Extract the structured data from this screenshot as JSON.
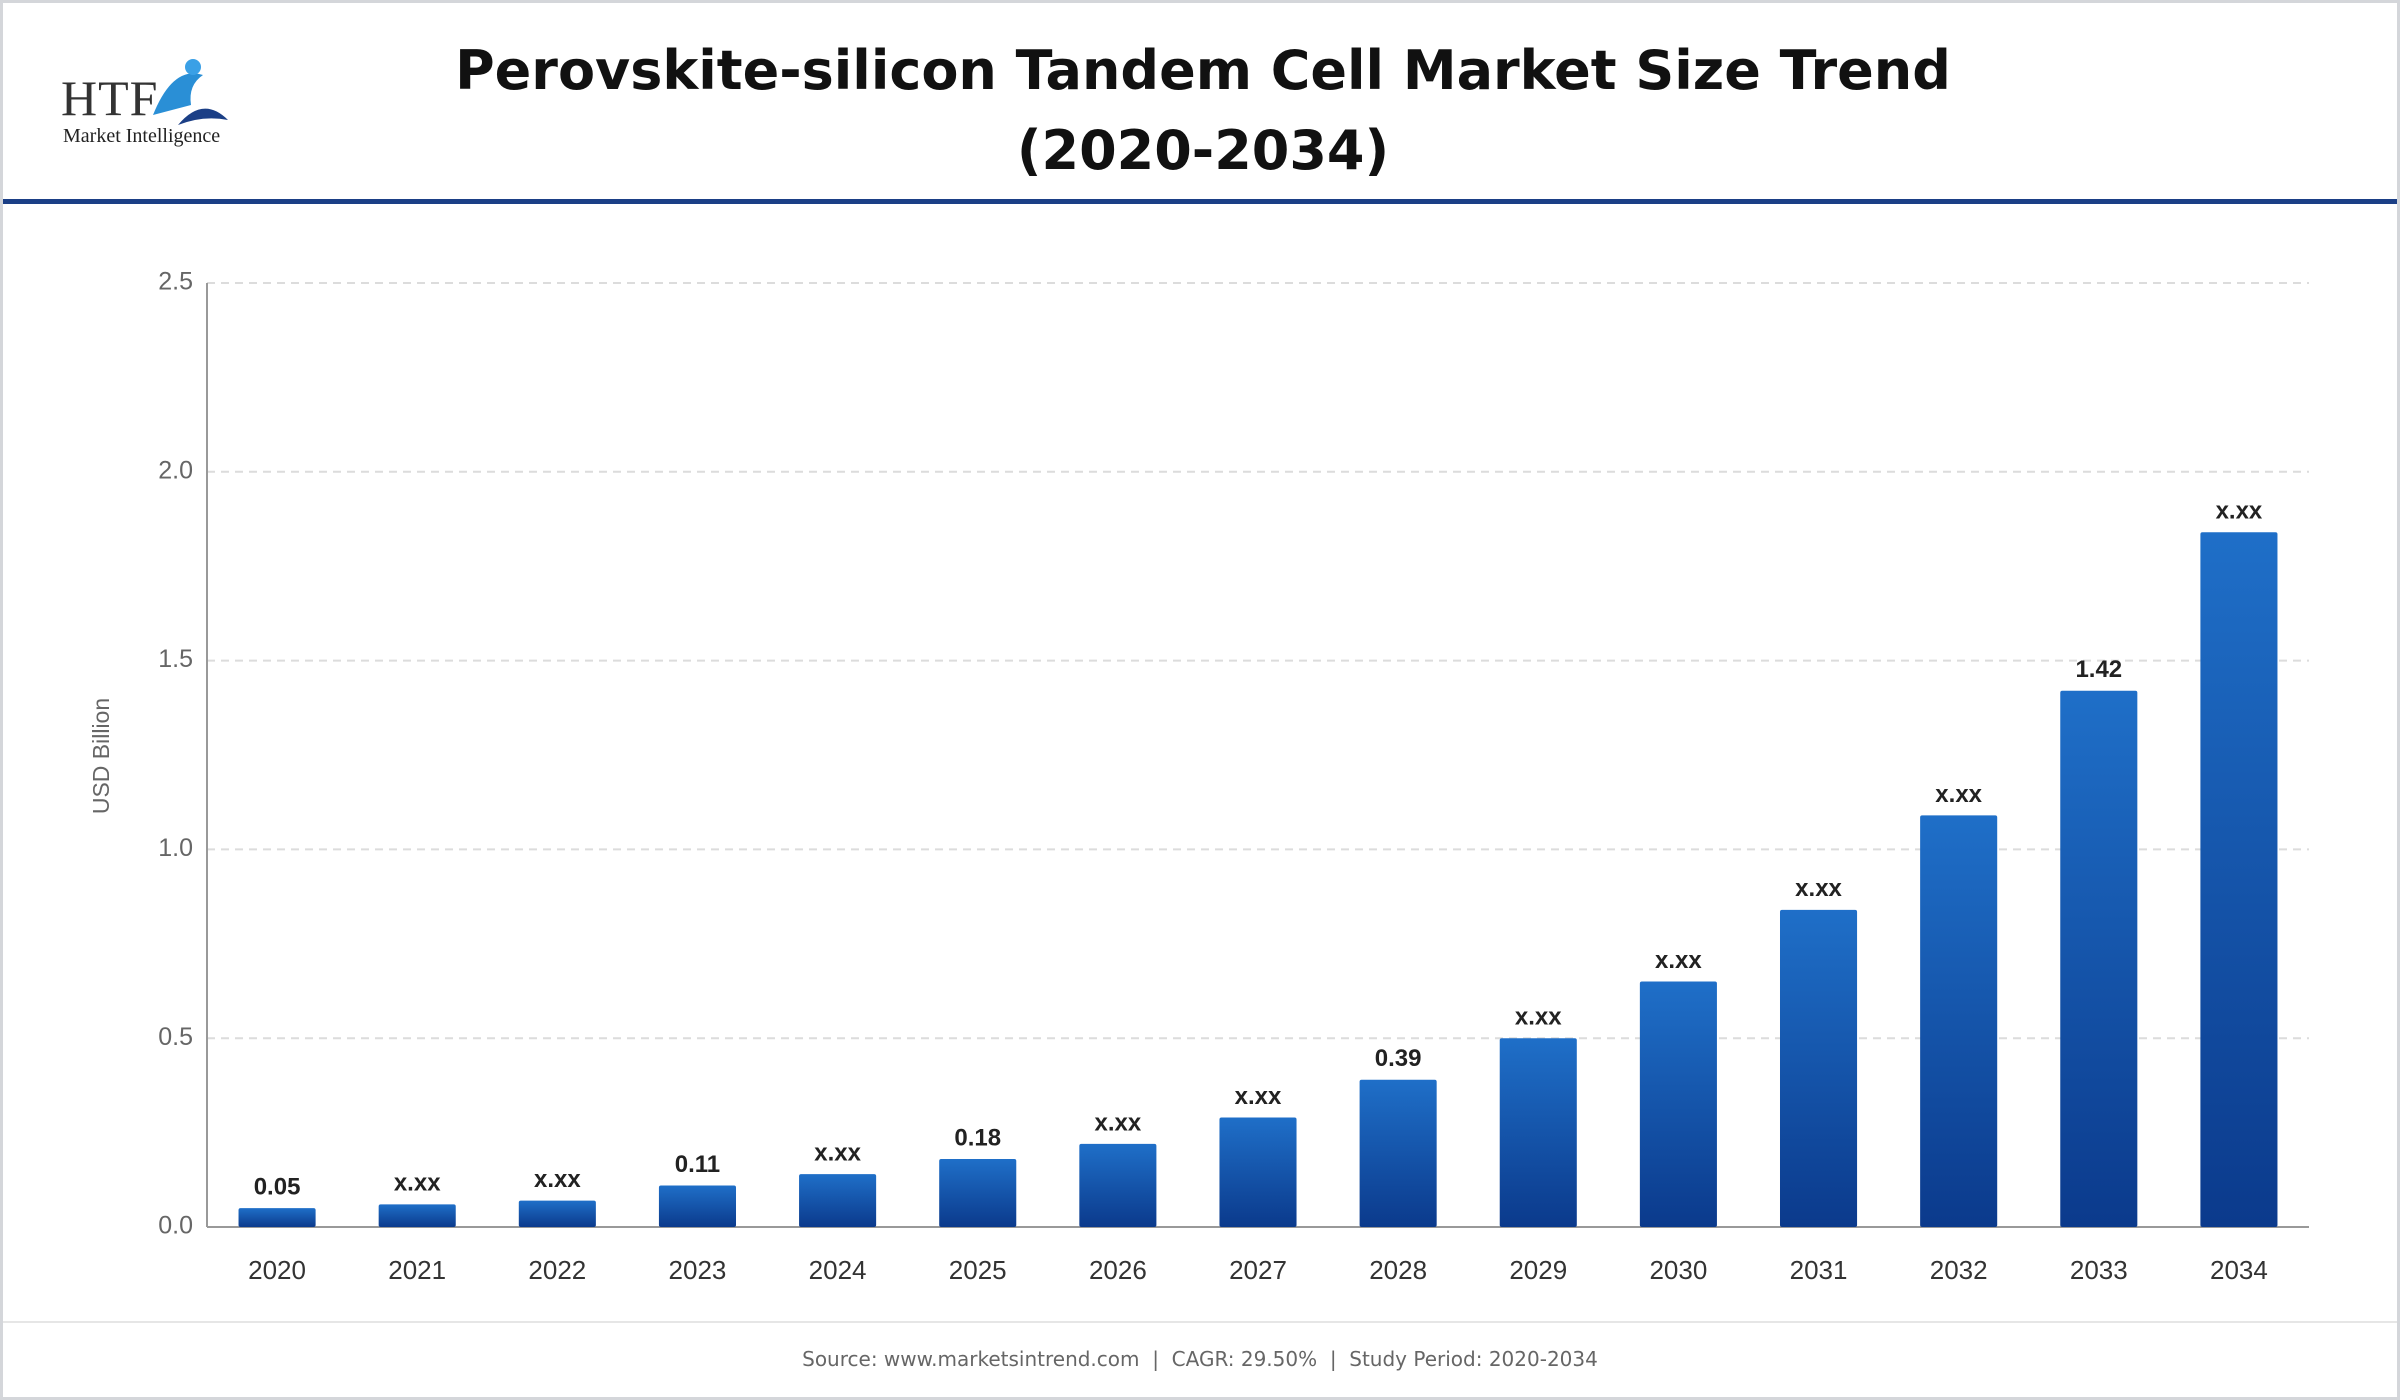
{
  "logo": {
    "name": "HTF",
    "tagline": "Market Intelligence"
  },
  "chart_data": {
    "type": "bar",
    "title": "Perovskite-silicon Tandem Cell Market Size Trend (2020-2034)",
    "y_label": "USD Billion",
    "categories": [
      "2020",
      "2021",
      "2022",
      "2023",
      "2024",
      "2025",
      "2026",
      "2027",
      "2028",
      "2029",
      "2030",
      "2031",
      "2032",
      "2033",
      "2034"
    ],
    "values": [
      0.05,
      0.06,
      0.07,
      0.11,
      0.14,
      0.18,
      0.22,
      0.29,
      0.39,
      0.5,
      0.65,
      0.84,
      1.09,
      1.42,
      1.84
    ],
    "value_labels": [
      "0.05",
      "x.xx",
      "x.xx",
      "0.11",
      "x.xx",
      "0.18",
      "x.xx",
      "x.xx",
      "0.39",
      "x.xx",
      "x.xx",
      "x.xx",
      "x.xx",
      "1.42",
      "x.xx"
    ],
    "color": "#1f6fc8",
    "ylim": [
      0,
      2.5
    ],
    "yticks": [
      {
        "value": 0,
        "label": "0.0"
      },
      0.5,
      {
        "value": 1,
        "label": "1.0"
      },
      1.5,
      {
        "value": 2,
        "label": "2.0"
      },
      2.5
    ],
    "grid": true
  },
  "footer": "Source: www.marketsintrend.com  |  CAGR: 29.50%  |  Study Period: 2020-2034"
}
